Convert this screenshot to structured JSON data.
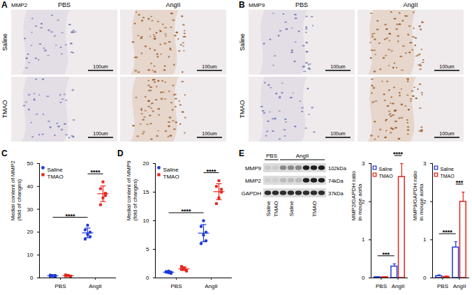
{
  "micrographs": [
    {
      "panel": "A",
      "stain": "MMP2",
      "columns": [
        "PBS",
        "AngII"
      ],
      "rows": [
        "Saline",
        "TMAO"
      ],
      "scale_bar": "100um"
    },
    {
      "panel": "B",
      "stain": "MMP9",
      "columns": [
        "PBS",
        "AngII"
      ],
      "rows": [
        "Saline",
        "TMAO"
      ],
      "scale_bar": "100um"
    }
  ],
  "blot": {
    "panel": "E",
    "groups": [
      "PBS",
      "AngII"
    ],
    "lanes": [
      {
        "group": "PBS",
        "label": "Saline",
        "count": 1
      },
      {
        "group": "PBS",
        "label": "TMAO",
        "count": 1
      },
      {
        "group": "AngII",
        "label": "Saline",
        "count": 3
      },
      {
        "group": "AngII",
        "label": "TMAO",
        "count": 3
      }
    ],
    "bands": [
      {
        "name": "MMP9",
        "size": "102kDa"
      },
      {
        "name": "MMP2",
        "size": "74kDa"
      },
      {
        "name": "GAPDH",
        "size": "37kDa"
      }
    ]
  },
  "chart_data": [
    {
      "panel": "C",
      "type": "scatter",
      "y_label": "Medial content of MMP2 (fold of changes)",
      "categories": [
        "PBS",
        "AngII"
      ],
      "ylim": [
        0,
        50
      ],
      "yticks": [
        0,
        10,
        20,
        30,
        40,
        50
      ],
      "legend": "top-left",
      "series": [
        {
          "name": "Saline",
          "color": "#1f3bd6",
          "marker": "circle",
          "values": [
            [
              0.8,
              1.0,
              0.6,
              1.2,
              0.9,
              1.1
            ],
            [
              17,
              19,
              20,
              21,
              23,
              18
            ]
          ],
          "mean": [
            0.93,
            19.7
          ],
          "error": [
            0.2,
            2.1
          ]
        },
        {
          "name": "TMAO",
          "color": "#e8231c",
          "marker": "square",
          "values": [
            [
              0.9,
              1.1,
              0.7,
              1.3,
              1.0,
              0.8
            ],
            [
              32,
              35,
              37,
              39,
              42,
              36
            ]
          ],
          "mean": [
            0.97,
            36.8
          ],
          "error": [
            0.22,
            3.4
          ]
        }
      ],
      "annotations": [
        {
          "text": "****",
          "between": [
            [
              "PBS",
              "Saline"
            ],
            [
              "AngII",
              "Saline"
            ]
          ]
        },
        {
          "text": "****",
          "between": [
            [
              "AngII",
              "Saline"
            ],
            [
              "AngII",
              "TMAO"
            ]
          ]
        }
      ]
    },
    {
      "panel": "D",
      "type": "scatter",
      "y_label": "Medial content of MMP9 (fold of changes)",
      "categories": [
        "PBS",
        "AngII"
      ],
      "ylim": [
        0,
        20
      ],
      "yticks": [
        0,
        5,
        10,
        15,
        20
      ],
      "legend": "top-left",
      "series": [
        {
          "name": "Saline",
          "color": "#1f3bd6",
          "marker": "circle",
          "values": [
            [
              1.0,
              1.2,
              0.8,
              1.1,
              0.9,
              1.0
            ],
            [
              6,
              7.5,
              8,
              9,
              10,
              6.5
            ]
          ],
          "mean": [
            1.0,
            7.83
          ],
          "error": [
            0.14,
            1.5
          ]
        },
        {
          "name": "TMAO",
          "color": "#e8231c",
          "marker": "square",
          "values": [
            [
              1.5,
              1.8,
              1.2,
              2.0,
              1.6,
              1.4
            ],
            [
              13,
              14,
              15,
              16,
              17,
              15.5
            ]
          ],
          "mean": [
            1.58,
            15.08
          ],
          "error": [
            0.28,
            1.4
          ]
        }
      ],
      "annotations": [
        {
          "text": "****",
          "between": [
            [
              "PBS",
              "Saline"
            ],
            [
              "AngII",
              "Saline"
            ]
          ]
        },
        {
          "text": "****",
          "between": [
            [
              "AngII",
              "Saline"
            ],
            [
              "AngII",
              "TMAO"
            ]
          ]
        }
      ]
    },
    {
      "type": "bar",
      "y_label": "MMP2/GAPDH ratio in mouse aorta",
      "categories": [
        "PBS",
        "AngII"
      ],
      "ylim": [
        0,
        3
      ],
      "yticks": [
        0,
        1,
        2,
        3
      ],
      "legend": "top-left",
      "series": [
        {
          "name": "Saline",
          "color": "#1f3bd6",
          "values": [
            0.02,
            0.3
          ],
          "error": [
            0.01,
            0.07
          ]
        },
        {
          "name": "TMAO",
          "color": "#e8231c",
          "values": [
            0.02,
            2.65
          ],
          "error": [
            0.01,
            0.35
          ]
        }
      ],
      "annotations": [
        {
          "text": "***",
          "between": [
            [
              "PBS",
              "Saline"
            ],
            [
              "AngII",
              "Saline"
            ]
          ]
        },
        {
          "text": "****",
          "between": [
            [
              "AngII",
              "Saline"
            ],
            [
              "AngII",
              "TMAO"
            ]
          ]
        }
      ]
    },
    {
      "type": "bar",
      "y_label": "MMP9/GAPDH ratio in mouse aorta",
      "categories": [
        "PBS",
        "AngII"
      ],
      "ylim": [
        0,
        3
      ],
      "yticks": [
        0,
        1,
        2,
        3
      ],
      "legend": "top-left",
      "series": [
        {
          "name": "Saline",
          "color": "#1f3bd6",
          "values": [
            0.05,
            0.8
          ],
          "error": [
            0.03,
            0.15
          ]
        },
        {
          "name": "TMAO",
          "color": "#e8231c",
          "values": [
            0.03,
            2.0
          ],
          "error": [
            0.02,
            0.25
          ]
        }
      ],
      "annotations": [
        {
          "text": "****",
          "between": [
            [
              "PBS",
              "Saline"
            ],
            [
              "AngII",
              "Saline"
            ]
          ]
        },
        {
          "text": "***",
          "between": [
            [
              "AngII",
              "Saline"
            ],
            [
              "AngII",
              "TMAO"
            ]
          ]
        }
      ]
    }
  ]
}
